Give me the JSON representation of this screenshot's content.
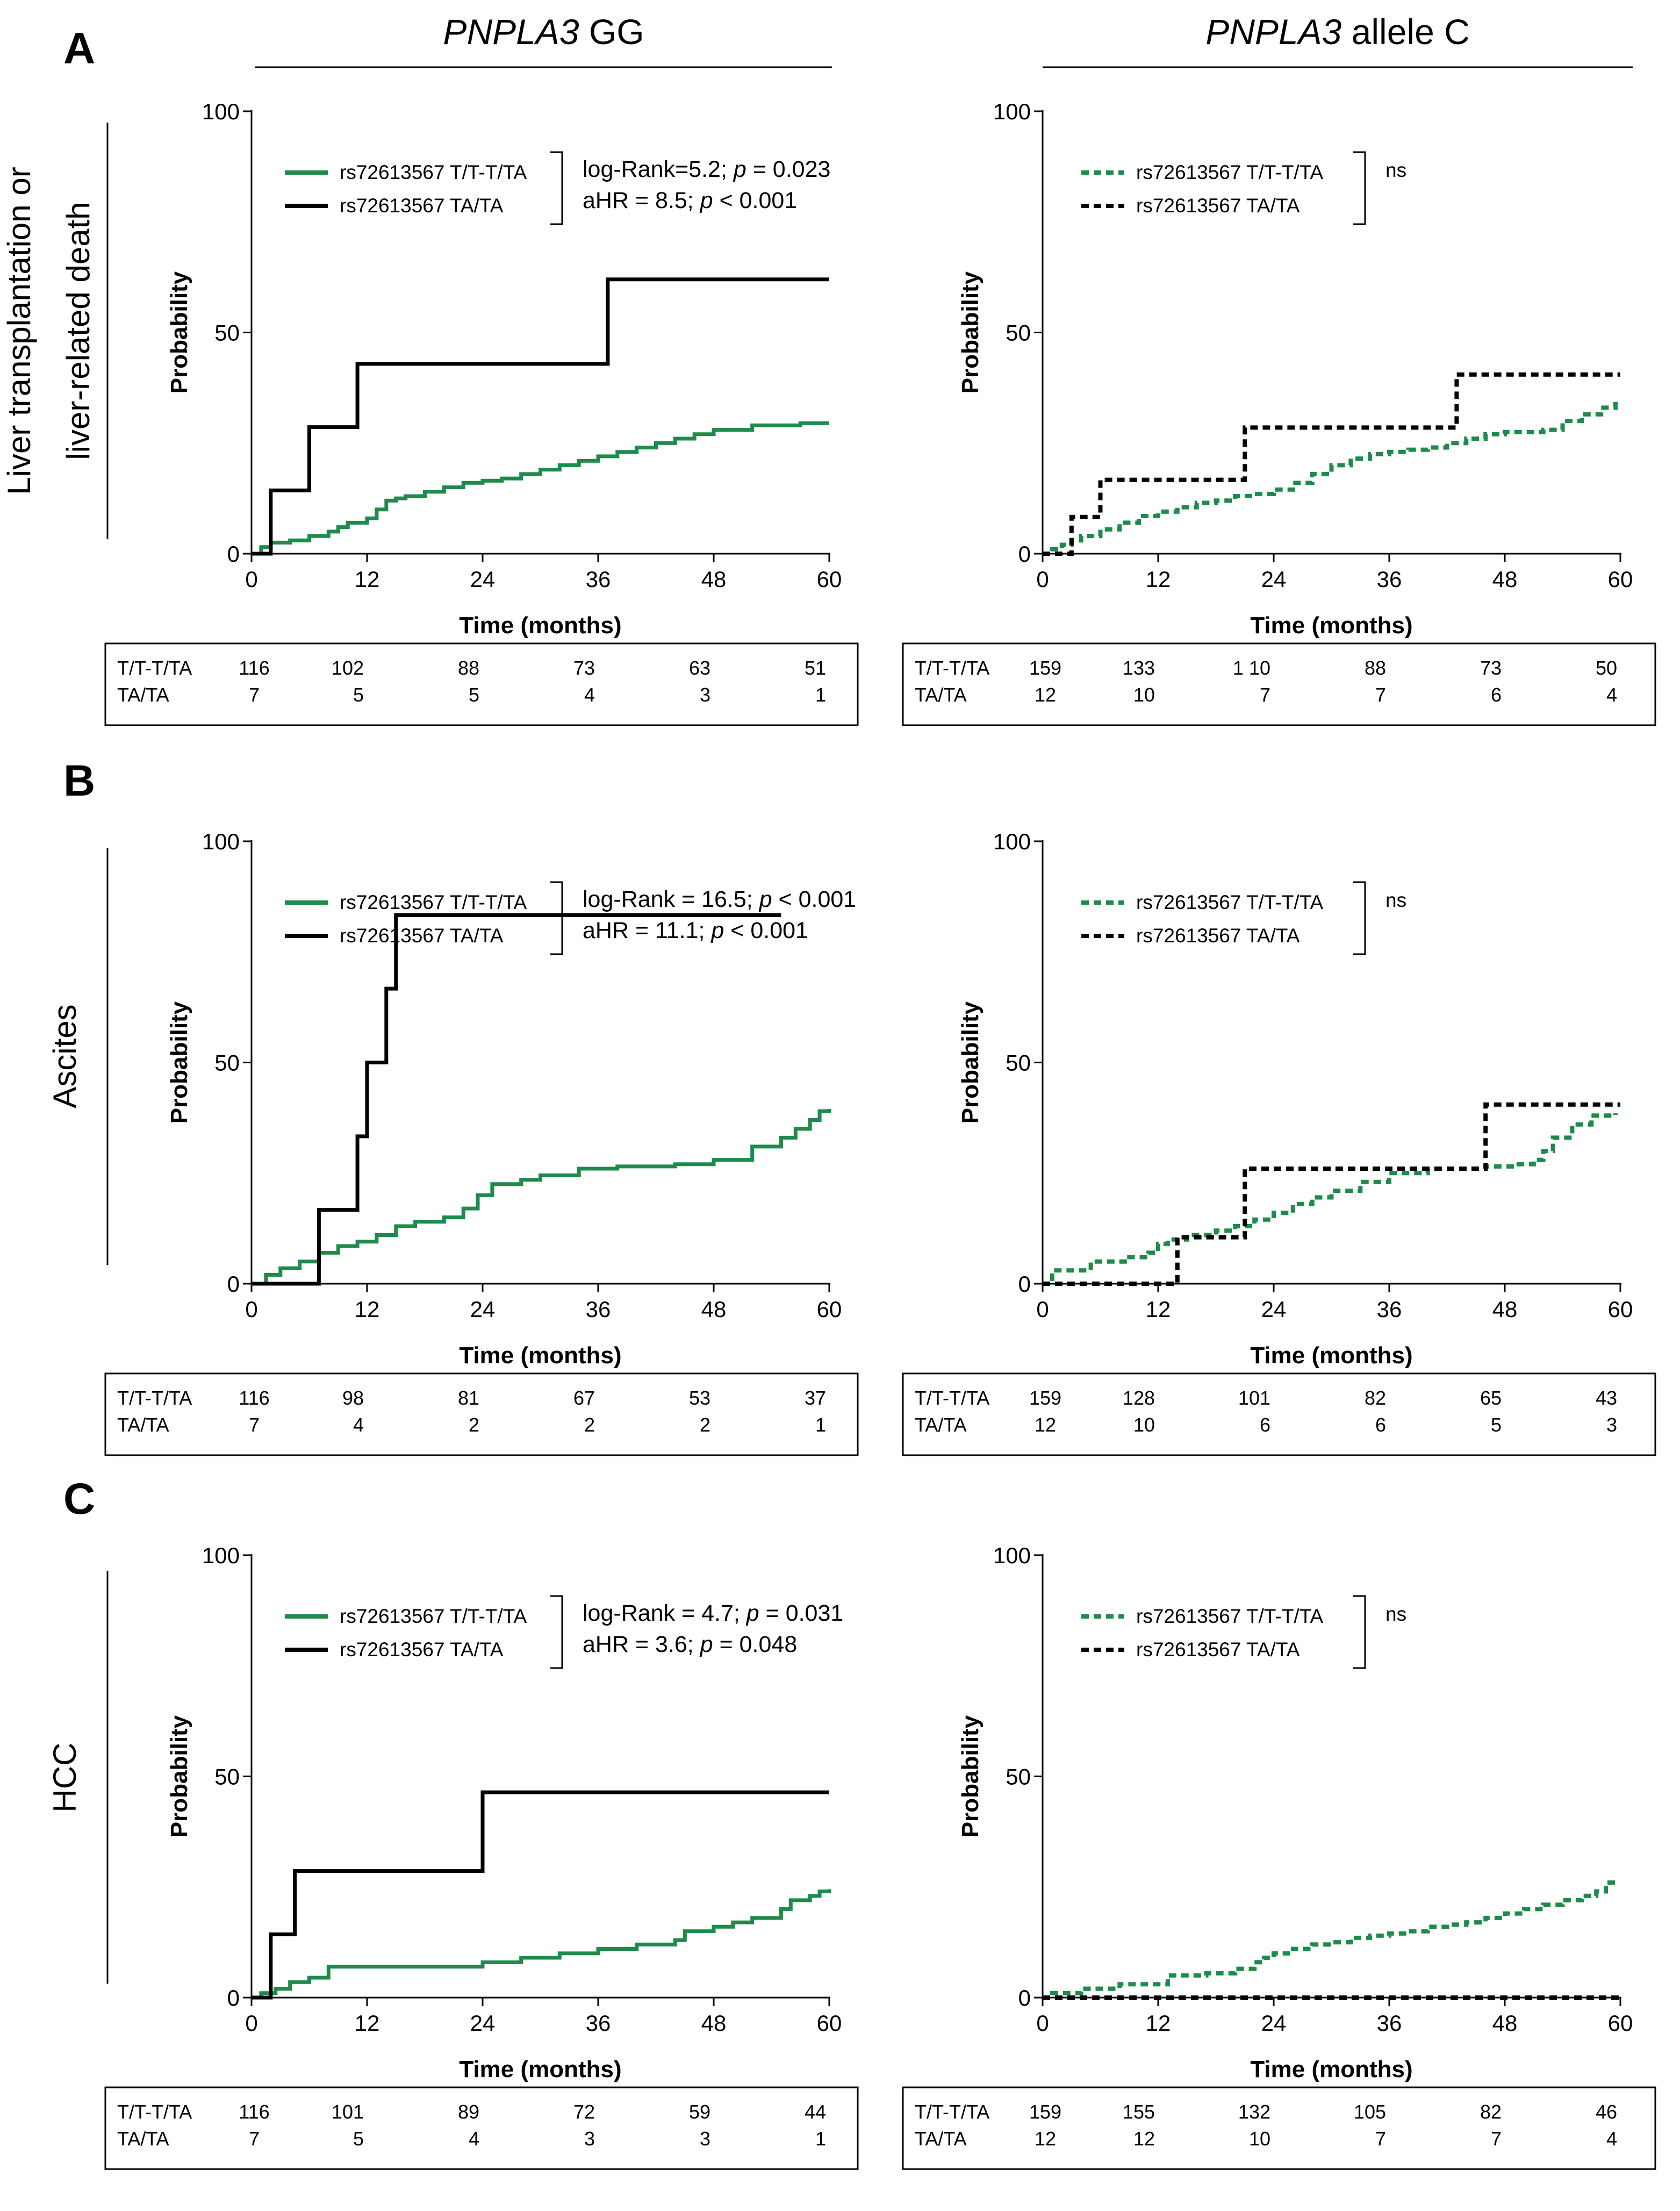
{
  "figure": {
    "column_headers": [
      {
        "italic": "PNPLA3",
        "rest": " GG"
      },
      {
        "italic": "PNPLA3",
        "rest": " allele C"
      }
    ],
    "row_letters": [
      "A",
      "B",
      "C"
    ],
    "row_labels": [
      [
        "Liver transplantation or",
        "liver-related death"
      ],
      [
        "Ascites"
      ],
      [
        "HCC"
      ]
    ],
    "colors": {
      "green": "#1e8a4c",
      "black": "#000000"
    }
  },
  "chart_data": [
    {
      "id": "A-GG",
      "type": "line",
      "step": true,
      "row": 0,
      "col": 0,
      "xlabel": "Time (months)",
      "ylabel": "Probability",
      "xlim": [
        0,
        60
      ],
      "ylim": [
        0,
        100
      ],
      "xticks": [
        "0",
        "12",
        "24",
        "36",
        "48",
        "60"
      ],
      "yticks": [
        "0",
        "50",
        "100"
      ],
      "series": [
        {
          "name": "rs72613567 T/T-T/TA",
          "color": "#1e8a4c",
          "dashed": false,
          "x": [
            0,
            1,
            2,
            4,
            6,
            8,
            9,
            10,
            12,
            13,
            14,
            15,
            16,
            18,
            20,
            22,
            24,
            26,
            28,
            30,
            32,
            34,
            36,
            38,
            40,
            42,
            44,
            46,
            48,
            52,
            57,
            60
          ],
          "y": [
            0,
            1.5,
            2.5,
            3,
            4,
            5,
            6,
            7,
            8,
            10,
            12,
            12.5,
            13,
            14,
            15,
            16,
            16.5,
            17,
            18,
            19,
            20,
            21,
            22,
            23,
            24,
            25,
            26,
            27,
            28,
            29,
            29.5,
            29.5
          ]
        },
        {
          "name": "rs72613567 TA/TA",
          "color": "#000000",
          "dashed": false,
          "x": [
            0,
            2,
            6,
            11,
            37,
            60
          ],
          "y": [
            0,
            14.3,
            28.6,
            42.9,
            62,
            62
          ]
        }
      ],
      "stats": [
        [
          {
            "t": "log-Rank=5.2;  "
          },
          {
            "t": "p",
            "i": true
          },
          {
            "t": " = 0.023"
          }
        ],
        [
          {
            "t": "aHR = 8.5; "
          },
          {
            "t": "p",
            "i": true
          },
          {
            "t": " < 0.001"
          }
        ]
      ],
      "risk_table": {
        "rows": [
          {
            "label": "T/T-T/TA",
            "values": [
              "116",
              "102",
              "88",
              "73",
              "63",
              "51"
            ]
          },
          {
            "label": "TA/TA",
            "values": [
              "7",
              "5",
              "5",
              "4",
              "3",
              "1"
            ]
          }
        ]
      }
    },
    {
      "id": "A-C",
      "type": "line",
      "step": true,
      "row": 0,
      "col": 1,
      "xlabel": "Time (months)",
      "ylabel": "Probability",
      "xlim": [
        0,
        60
      ],
      "ylim": [
        0,
        100
      ],
      "xticks": [
        "0",
        "12",
        "24",
        "36",
        "48",
        "60"
      ],
      "yticks": [
        "0",
        "50",
        "100"
      ],
      "series": [
        {
          "name": "rs72613567 T/T-T/TA",
          "color": "#1e8a4c",
          "dashed": true,
          "x": [
            0,
            1,
            2,
            3,
            4,
            6,
            8,
            10,
            12,
            14,
            16,
            18,
            20,
            22,
            24,
            26,
            28,
            30,
            32,
            34,
            36,
            38,
            40,
            42,
            44,
            46,
            48,
            52,
            54,
            56,
            58,
            59.5
          ],
          "y": [
            0,
            1,
            2,
            3,
            4,
            5.5,
            7,
            8.5,
            9.5,
            10.5,
            11.5,
            12,
            13,
            13.5,
            14.5,
            16,
            18,
            20,
            21.5,
            22.5,
            23,
            23.5,
            24,
            25,
            26,
            27,
            27.5,
            28,
            30,
            31.5,
            33,
            35
          ]
        },
        {
          "name": "rs72613567 TA/TA",
          "color": "#000000",
          "dashed": true,
          "x": [
            0,
            3,
            6,
            21,
            43,
            60
          ],
          "y": [
            0,
            8.3,
            16.7,
            28.5,
            40.5,
            40.5
          ]
        }
      ],
      "stats": [
        [
          {
            "t": "ns"
          }
        ]
      ],
      "risk_table": {
        "rows": [
          {
            "label": "T/T-T/TA",
            "values": [
              "159",
              "133",
              "1 10",
              "88",
              "73",
              "50"
            ]
          },
          {
            "label": "TA/TA",
            "values": [
              "12",
              "10",
              "7",
              "7",
              "6",
              "4"
            ]
          }
        ]
      }
    },
    {
      "id": "B-GG",
      "type": "line",
      "step": true,
      "row": 1,
      "col": 0,
      "xlabel": "Time (months)",
      "ylabel": "Probability",
      "xlim": [
        0,
        60
      ],
      "ylim": [
        0,
        100
      ],
      "xticks": [
        "0",
        "12",
        "24",
        "36",
        "48",
        "60"
      ],
      "yticks": [
        "0",
        "50",
        "100"
      ],
      "series": [
        {
          "name": "rs72613567 T/T-T/TA",
          "color": "#1e8a4c",
          "dashed": false,
          "x": [
            0,
            1.5,
            3,
            5,
            7,
            9,
            11,
            13,
            15,
            17,
            20,
            22,
            23.5,
            25,
            28,
            30,
            34,
            38,
            44,
            48,
            52,
            55,
            56.5,
            58,
            59,
            60
          ],
          "y": [
            0,
            2,
            3.5,
            5,
            7,
            8.5,
            9.5,
            11,
            13,
            14,
            15,
            17,
            20,
            22.5,
            23.5,
            24.5,
            26,
            26.5,
            27,
            28,
            31,
            33,
            35,
            37,
            39,
            39.5
          ]
        },
        {
          "name": "rs72613567 TA/TA",
          "color": "#000000",
          "dashed": false,
          "x": [
            0,
            7,
            11,
            12,
            14,
            15,
            55
          ],
          "y": [
            0,
            16.7,
            33.3,
            50,
            66.7,
            83.3,
            83.3
          ]
        }
      ],
      "stats": [
        [
          {
            "t": "log-Rank = 16.5; "
          },
          {
            "t": "p",
            "i": true
          },
          {
            "t": " < 0.001"
          }
        ],
        [
          {
            "t": "aHR = 11.1; "
          },
          {
            "t": "p",
            "i": true
          },
          {
            "t": " < 0.001"
          }
        ]
      ],
      "risk_table": {
        "rows": [
          {
            "label": "T/T-T/TA",
            "values": [
              "116",
              "98",
              "81",
              "67",
              "53",
              "37"
            ]
          },
          {
            "label": "TA/TA",
            "values": [
              "7",
              "4",
              "2",
              "2",
              "2",
              "1"
            ]
          }
        ]
      }
    },
    {
      "id": "B-C",
      "type": "line",
      "step": true,
      "row": 1,
      "col": 1,
      "xlabel": "Time (months)",
      "ylabel": "Probability",
      "xlim": [
        0,
        60
      ],
      "ylim": [
        0,
        100
      ],
      "xticks": [
        "0",
        "12",
        "24",
        "36",
        "48",
        "60"
      ],
      "yticks": [
        "0",
        "50",
        "100"
      ],
      "series": [
        {
          "name": "rs72613567 T/T-T/TA",
          "color": "#1e8a4c",
          "dashed": true,
          "x": [
            0,
            1,
            5,
            9,
            11,
            12,
            13,
            15,
            18,
            20,
            22,
            24,
            26,
            28,
            30,
            33,
            36,
            40,
            46,
            49,
            51,
            52,
            53,
            55,
            57,
            59.5
          ],
          "y": [
            0,
            3,
            5,
            6,
            7,
            9,
            10,
            11,
            12,
            13,
            14.5,
            16,
            18,
            19.5,
            21,
            23,
            25,
            26,
            26.5,
            27,
            28,
            30,
            33,
            36,
            38,
            38.5
          ]
        },
        {
          "name": "rs72613567 TA/TA",
          "color": "#000000",
          "dashed": true,
          "x": [
            0,
            14,
            21,
            46,
            60
          ],
          "y": [
            0,
            10.5,
            26,
            40.5,
            40.5
          ]
        }
      ],
      "stats": [
        [
          {
            "t": "ns"
          }
        ]
      ],
      "risk_table": {
        "rows": [
          {
            "label": "T/T-T/TA",
            "values": [
              "159",
              "128",
              "101",
              "82",
              "65",
              "43"
            ]
          },
          {
            "label": "TA/TA",
            "values": [
              "12",
              "10",
              "6",
              "6",
              "5",
              "3"
            ]
          }
        ]
      }
    },
    {
      "id": "C-GG",
      "type": "line",
      "step": true,
      "row": 2,
      "col": 0,
      "xlabel": "Time (months)",
      "ylabel": "Probability",
      "xlim": [
        0,
        60
      ],
      "ylim": [
        0,
        100
      ],
      "xticks": [
        "0",
        "12",
        "24",
        "36",
        "48",
        "60"
      ],
      "yticks": [
        "0",
        "50",
        "100"
      ],
      "series": [
        {
          "name": "rs72613567 T/T-T/TA",
          "color": "#1e8a4c",
          "dashed": false,
          "x": [
            0,
            1,
            2.5,
            4,
            6,
            8,
            24,
            28,
            32,
            36,
            40,
            44,
            45,
            48,
            50,
            52,
            55,
            56,
            58,
            59,
            60
          ],
          "y": [
            0,
            1,
            2,
            3.5,
            4.5,
            7,
            8,
            9,
            10,
            11,
            12,
            13,
            15,
            16,
            17,
            18,
            20,
            22,
            23,
            24,
            24.5
          ]
        },
        {
          "name": "rs72613567 TA/TA",
          "color": "#000000",
          "dashed": false,
          "x": [
            0,
            2,
            4.5,
            24,
            60
          ],
          "y": [
            0,
            14.3,
            28.6,
            46.4,
            46.4
          ]
        }
      ],
      "stats": [
        [
          {
            "t": "log-Rank = 4.7; "
          },
          {
            "t": "p",
            "i": true
          },
          {
            "t": " = 0.031"
          }
        ],
        [
          {
            "t": "aHR = 3.6; "
          },
          {
            "t": "p",
            "i": true
          },
          {
            "t": " = 0.048"
          }
        ]
      ],
      "risk_table": {
        "rows": [
          {
            "label": "T/T-T/TA",
            "values": [
              "116",
              "101",
              "89",
              "72",
              "59",
              "44"
            ]
          },
          {
            "label": "TA/TA",
            "values": [
              "7",
              "5",
              "4",
              "3",
              "3",
              "1"
            ]
          }
        ]
      }
    },
    {
      "id": "C-C",
      "type": "line",
      "step": true,
      "row": 2,
      "col": 1,
      "xlabel": "Time (months)",
      "ylabel": "Probability",
      "xlim": [
        0,
        60
      ],
      "ylim": [
        0,
        100
      ],
      "xticks": [
        "0",
        "12",
        "24",
        "36",
        "48",
        "60"
      ],
      "yticks": [
        "0",
        "50",
        "100"
      ],
      "series": [
        {
          "name": "rs72613567 T/T-T/TA",
          "color": "#1e8a4c",
          "dashed": true,
          "x": [
            0,
            1,
            4,
            8,
            13,
            17,
            20,
            22,
            23,
            24,
            26,
            28,
            30,
            32,
            34,
            36,
            38,
            40,
            42,
            44,
            46,
            48,
            50,
            52,
            54,
            56,
            57.5,
            58.5,
            59.5
          ],
          "y": [
            0,
            1,
            2,
            3,
            5,
            5.5,
            6.5,
            8,
            9,
            10,
            11,
            12,
            12.5,
            13.5,
            14,
            14.5,
            15,
            16,
            16.5,
            17,
            18,
            19,
            20,
            21,
            22,
            23,
            24,
            26,
            27
          ]
        },
        {
          "name": "rs72613567 TA/TA",
          "color": "#000000",
          "dashed": true,
          "x": [
            0,
            60
          ],
          "y": [
            0,
            0
          ]
        }
      ],
      "stats": [
        [
          {
            "t": "ns"
          }
        ]
      ],
      "risk_table": {
        "rows": [
          {
            "label": "T/T-T/TA",
            "values": [
              "159",
              "155",
              "132",
              "105",
              "82",
              "46"
            ]
          },
          {
            "label": "TA/TA",
            "values": [
              "12",
              "12",
              "10",
              "7",
              "7",
              "4"
            ]
          }
        ]
      }
    }
  ]
}
